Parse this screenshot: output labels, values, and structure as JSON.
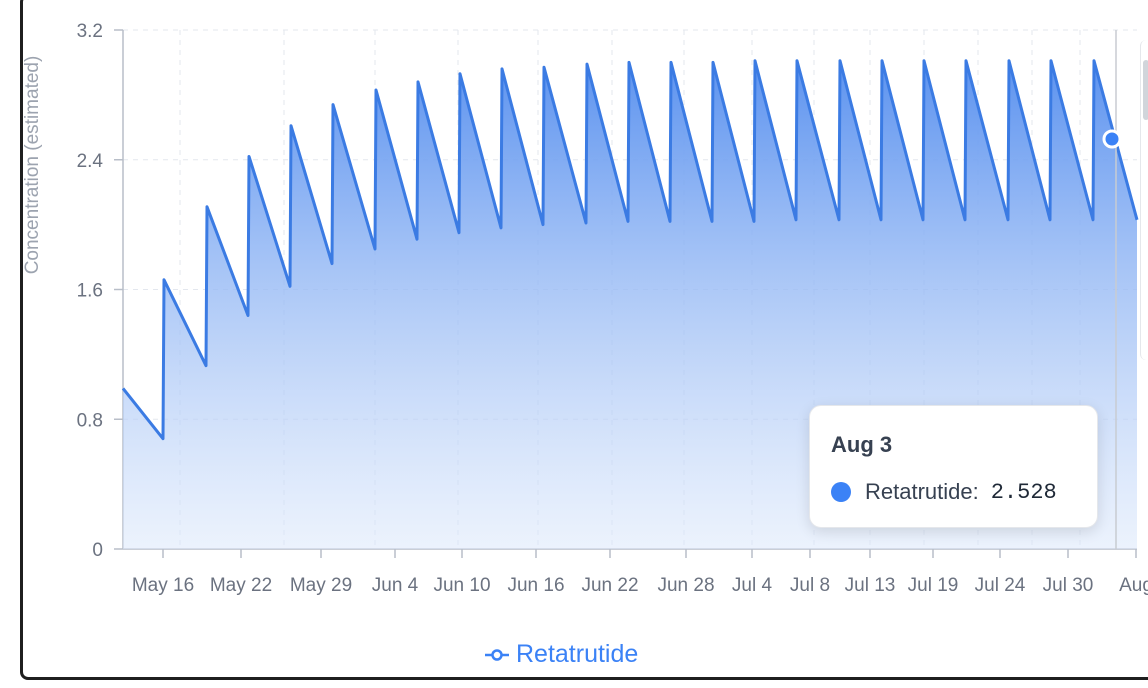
{
  "chart_data": {
    "type": "area",
    "ylabel": "Concentration (estimated)",
    "xlabel": "",
    "ylim": [
      0,
      3.2
    ],
    "yticks": [
      "0",
      "0.8",
      "1.6",
      "2.4",
      "3.2"
    ],
    "xticks": [
      "May 16",
      "May 22",
      "May 29",
      "Jun 4",
      "Jun 10",
      "Jun 16",
      "Jun 22",
      "Jun 28",
      "Jul 4",
      "Jul 8",
      "Jul 13",
      "Jul 19",
      "Jul 24",
      "Jul 30",
      "Aug"
    ],
    "grid": true,
    "legend_position": "bottom",
    "series": [
      {
        "name": "Retatrutide",
        "color": "#3b82f6",
        "peaks": [
          1.66,
          2.11,
          2.42,
          2.61,
          2.74,
          2.83,
          2.88,
          2.93,
          2.96,
          2.97,
          2.99,
          3.0,
          3.0,
          3.0,
          3.01,
          3.01,
          3.01,
          3.01,
          3.01,
          3.01,
          3.01,
          3.01,
          3.01,
          3.01
        ],
        "troughs": [
          1.13,
          1.44,
          1.62,
          1.76,
          1.85,
          1.91,
          1.95,
          1.98,
          2.0,
          2.01,
          2.02,
          2.02,
          2.02,
          2.02,
          2.03,
          2.03,
          2.03,
          2.03,
          2.03,
          2.03,
          2.03,
          2.03,
          2.03,
          2.03
        ],
        "start_value": 0.99,
        "first_trough": 0.68,
        "end_value": 2.03
      }
    ]
  },
  "tooltip": {
    "title": "Aug 3",
    "series": "Retatrutide:",
    "value": "2.528"
  },
  "legend": {
    "label": "Retatrutide"
  }
}
